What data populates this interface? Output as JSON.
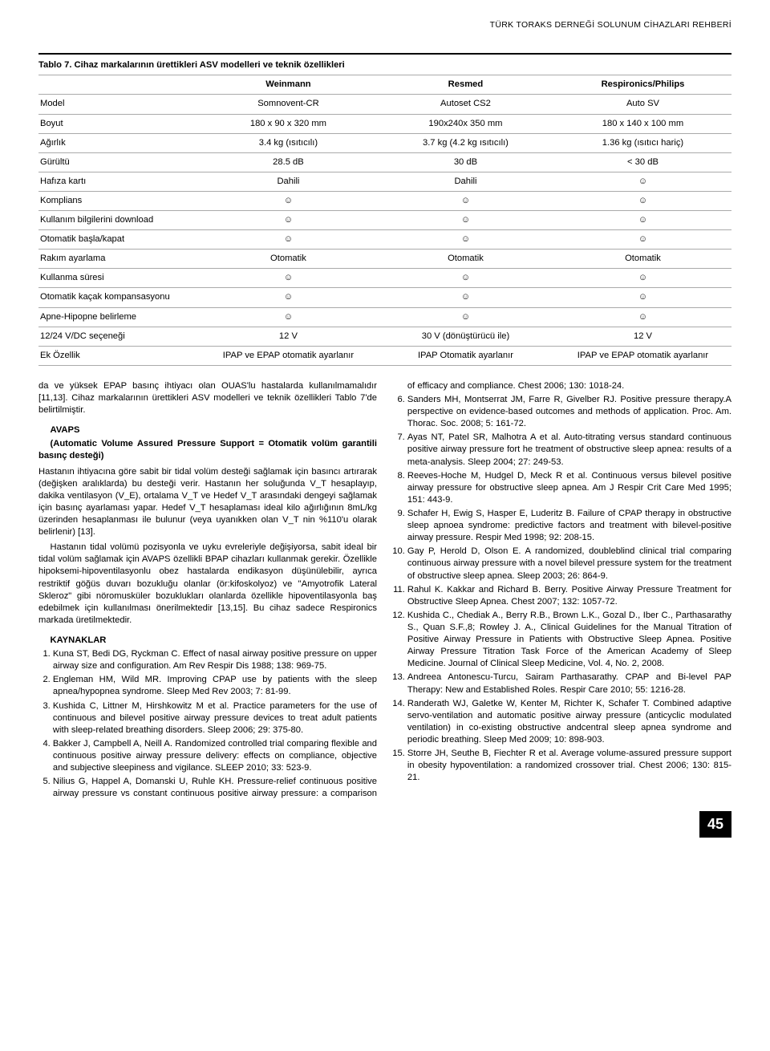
{
  "running_head": "TÜRK TORAKS DERNEĞİ SOLUNUM CİHAZLARI REHBERİ",
  "table": {
    "caption": "Tablo 7. Cihaz markalarının ürettikleri ASV modelleri ve teknik özellikleri",
    "brands": [
      "Weinmann",
      "Resmed",
      "Respironics/Philips"
    ],
    "rows": [
      {
        "label": "Model",
        "v": [
          "Somnovent-CR",
          "Autoset CS2",
          "Auto SV"
        ]
      },
      {
        "label": "Boyut",
        "v": [
          "180 x 90 x 320 mm",
          "190x240x 350 mm",
          "180 x 140 x 100 mm"
        ]
      },
      {
        "label": "Ağırlık",
        "v": [
          "3.4 kg (ısıtıcılı)",
          "3.7 kg (4.2 kg ısıtıcılı)",
          "1.36 kg (ısıtıcı hariç)"
        ]
      },
      {
        "label": "Gürültü",
        "v": [
          "28.5 dB",
          "30 dB",
          "< 30 dB"
        ]
      },
      {
        "label": "Hafıza kartı",
        "v": [
          "Dahili",
          "Dahili",
          "☺"
        ]
      },
      {
        "label": "Komplians",
        "v": [
          "☺",
          "☺",
          "☺"
        ]
      },
      {
        "label": "Kullanım bilgilerini download",
        "v": [
          "☺",
          "☺",
          "☺"
        ]
      },
      {
        "label": "Otomatik başla/kapat",
        "v": [
          "☺",
          "☺",
          "☺"
        ]
      },
      {
        "label": "Rakım ayarlama",
        "v": [
          "Otomatik",
          "Otomatik",
          "Otomatik"
        ]
      },
      {
        "label": "Kullanma süresi",
        "v": [
          "☺",
          "☺",
          "☺"
        ]
      },
      {
        "label": "Otomatik kaçak kompansasyonu",
        "v": [
          "☺",
          "☺",
          "☺"
        ]
      },
      {
        "label": "Apne-Hipopne belirleme",
        "v": [
          "☺",
          "☺",
          "☺"
        ]
      },
      {
        "label": "12/24 V/DC seçeneği",
        "v": [
          "12 V",
          "30 V (dönüştürücü ile)",
          "12 V"
        ]
      },
      {
        "label": "Ek Özellik",
        "v": [
          "IPAP ve EPAP otomatik ayarlanır",
          "IPAP Otomatik ayarlanır",
          "IPAP ve EPAP otomatik ayarlanır"
        ]
      }
    ]
  },
  "body": {
    "p1": "da ve yüksek EPAP basınç ihtiyacı olan OUAS'lu hastalarda kullanılmamalıdır [11,13]. Cihaz markalarının ürettikleri ASV modelleri ve teknik özellikleri Tablo 7'de belirtilmiştir.",
    "avaps_title": "AVAPS",
    "avaps_sub": "(Automatic Volume Assured Pressure Support = Otomatik volüm garantili basınç desteği)",
    "p2": "Hastanın ihtiyacına göre sabit bir tidal volüm desteği sağlamak için basıncı artırarak (değişken aralıklarda) bu desteği verir. Hastanın her soluğunda V_T hesaplayıp, dakika ventilasyon (V_E), ortalama V_T ve Hedef V_T arasındaki dengeyi sağlamak için basınç ayarlaması yapar. Hedef V_T hesaplaması ideal kilo ağırlığının 8mL/kg üzerinden hesaplanması ile bulunur (veya uyanıkken olan V_T nin %110'u olarak belirlenir) [13].",
    "p3": "Hastanın tidal volümü pozisyonla ve uyku evreleriyle değişiyorsa, sabit ideal bir tidal volüm sağlamak için AVAPS özellikli BPAP cihazları kullanmak gerekir. Özellikle hipoksemi-hipoventilasyonlu obez hastalarda endikasyon düşünülebilir, ayrıca restriktif göğüs duvarı bozukluğu olanlar (ör:kifoskolyoz) ve \"Amyotrofik Lateral Skleroz\" gibi nöromusküler bozuklukları olanlarda özellikle hipoventilasyonla baş edebilmek için kullanılması önerilmektedir [13,15]. Bu cihaz sadece Respironics markada üretilmektedir.",
    "kaynaklar_title": "KAYNAKLAR"
  },
  "refs": [
    "Kuna ST, Bedi DG, Ryckman C. Effect of nasal airway positive pressure on upper airway size and configuration. Am Rev Respir Dis 1988; 138: 969-75.",
    "Engleman HM, Wild MR. Improving CPAP use by patients with the sleep apnea/hypopnea syndrome. Sleep Med Rev 2003; 7: 81-99.",
    "Kushida C, Littner M, Hirshkowitz M et al. Practice parameters for the use of continuous and bilevel positive airway pressure devices to treat adult patients with sleep-related breathing disorders. Sleep 2006; 29: 375-80.",
    "Bakker J, Campbell A, Neill A. Randomized controlled trial comparing flexible and continuous positive airway pressure delivery: effects on compliance, objective and subjective sleepiness and vigilance. SLEEP 2010; 33: 523-9.",
    "Nilius G, Happel A, Domanski U, Ruhle KH. Pressure-relief continuous positive airway pressure vs constant continuous positive airway pressure: a comparison of efficacy and compliance. Chest 2006; 130: 1018-24.",
    "Sanders MH, Montserrat JM, Farre R, Givelber RJ. Positive pressure therapy.A perspective on evidence-based outcomes and methods of application. Proc. Am. Thorac. Soc. 2008; 5: 161-72.",
    "Ayas NT, Patel SR, Malhotra A et al. Auto-titrating versus standard continuous positive airway pressure fort he treatment of obstructive sleep apnea: results of a meta-analysis. Sleep 2004; 27: 249-53.",
    "Reeves-Hoche M, Hudgel D, Meck R et al. Continuous versus bilevel positive airway pressure for obstructive sleep apnea. Am J Respir Crit Care Med 1995; 151: 443-9.",
    "Schafer H, Ewig S, Hasper E, Luderitz B. Failure of CPAP therapy in obstructive sleep apnoea syndrome: predictive factors and treatment with bilevel-positive airway pressure. Respir Med 1998; 92: 208-15.",
    "Gay P, Herold D, Olson E. A randomized, doubleblind clinical trial comparing continuous airway pressure with a novel bilevel pressure system for the treatment of obstructive sleep apnea. Sleep 2003; 26: 864-9.",
    "Rahul K. Kakkar and Richard B. Berry. Positive Airway Pressure Treatment for Obstructive Sleep Apnea. Chest 2007; 132: 1057-72.",
    "Kushida C., Chediak A., Berry R.B., Brown L.K., Gozal D., Iber C., Parthasarathy S., Quan S.F.,8; Rowley J. A., Clinical Guidelines for the Manual Titration of Positive Airway Pressure in Patients with Obstructive Sleep Apnea. Positive Airway Pressure Titration Task Force of the American Academy of Sleep Medicine. Journal of Clinical Sleep Medicine, Vol. 4, No. 2, 2008.",
    "Andreea Antonescu-Turcu, Sairam Parthasarathy. CPAP and Bi-level PAP Therapy: New and Established Roles. Respir Care 2010; 55: 1216-28.",
    "Randerath WJ, Galetke W, Kenter M, Richter K, Schafer T. Combined adaptive servo-ventilation and automatic positive airway pressure (anticyclic modulated ventilation) in co-existing obstructive andcentral sleep apnea syndrome and periodic breathing. Sleep Med 2009; 10: 898-903.",
    "Storre JH, Seuthe B, Fiechter R et al. Average volume-assured pressure support in obesity hypoventilation: a randomized crossover trial. Chest 2006; 130: 815-21."
  ],
  "page_number": "45"
}
